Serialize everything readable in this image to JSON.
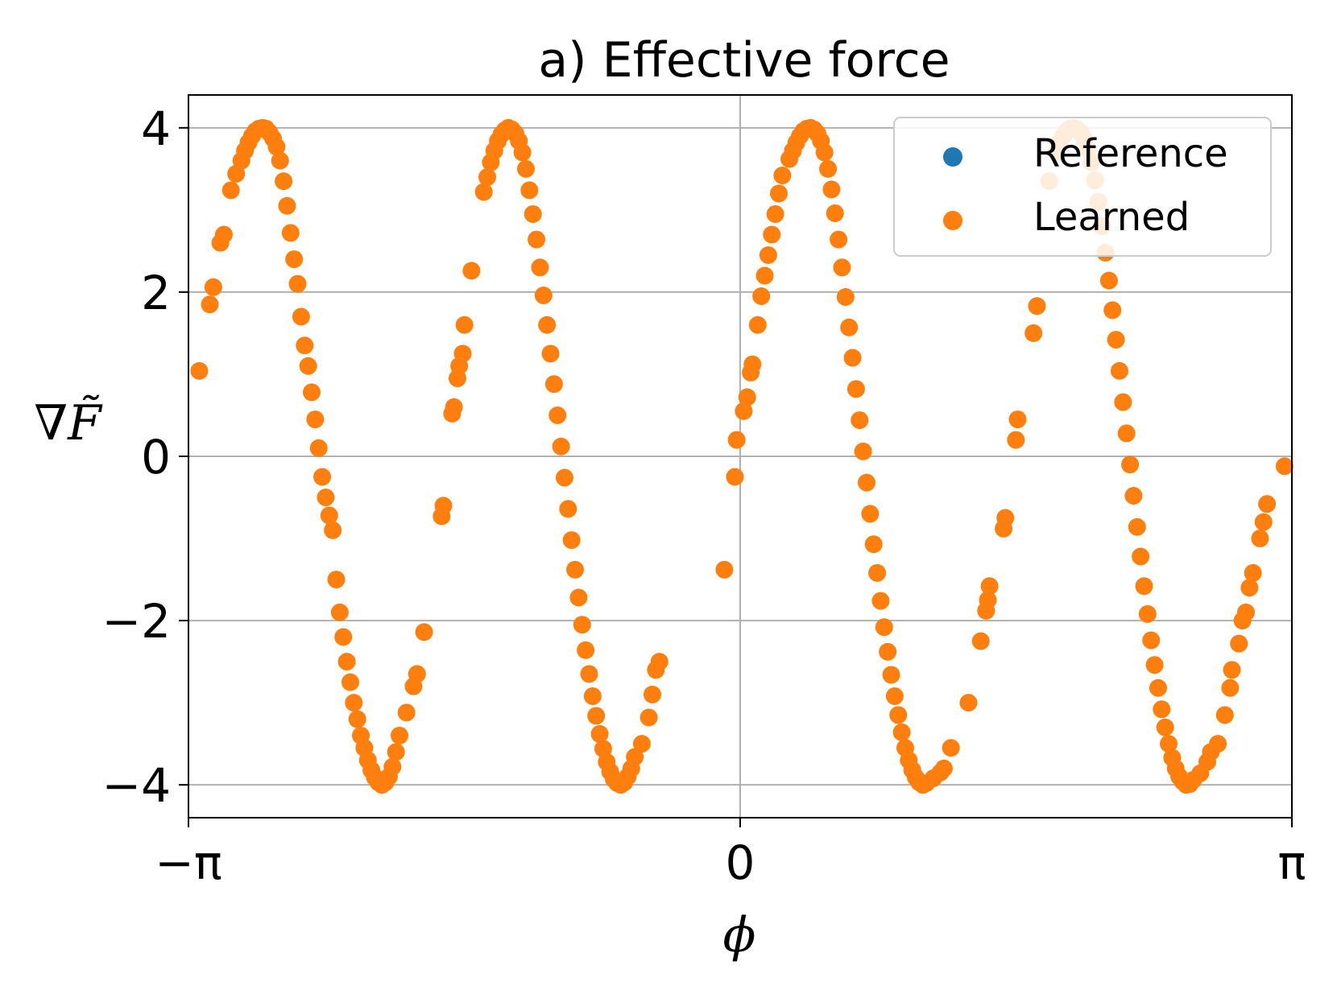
{
  "chart_data": {
    "type": "scatter",
    "title": "a) Effective force",
    "xlabel": "ϕ",
    "ylabel": "∇F̃",
    "xlim": [
      -3.14159,
      3.14159
    ],
    "ylim": [
      -4.4,
      4.4
    ],
    "xticks": [
      {
        "value": -3.14159,
        "label": "−π"
      },
      {
        "value": 0,
        "label": "0"
      },
      {
        "value": 3.14159,
        "label": "π"
      }
    ],
    "yticks": [
      {
        "value": 4,
        "label": "4"
      },
      {
        "value": 2,
        "label": "2"
      },
      {
        "value": 0,
        "label": "0"
      },
      {
        "value": -2,
        "label": "−2"
      },
      {
        "value": -4,
        "label": "−4"
      }
    ],
    "grid": true,
    "legend_position": "top-right",
    "series": [
      {
        "name": "Reference",
        "color": "#1f77b4",
        "points": []
      },
      {
        "name": "Learned",
        "color": "#ff7f0e",
        "points": [
          [
            -3.08,
            1.04
          ],
          [
            -3.02,
            1.85
          ],
          [
            -3.0,
            2.06
          ],
          [
            -2.96,
            2.6
          ],
          [
            -2.94,
            2.7
          ],
          [
            -2.9,
            3.24
          ],
          [
            -2.87,
            3.44
          ],
          [
            -2.84,
            3.6
          ],
          [
            -2.82,
            3.72
          ],
          [
            -2.8,
            3.82
          ],
          [
            -2.78,
            3.9
          ],
          [
            -2.76,
            3.96
          ],
          [
            -2.74,
            3.99
          ],
          [
            -2.72,
            4.0
          ],
          [
            -2.7,
            3.99
          ],
          [
            -2.68,
            3.94
          ],
          [
            -2.66,
            3.87
          ],
          [
            -2.64,
            3.77
          ],
          [
            -2.62,
            3.6
          ],
          [
            -2.6,
            3.35
          ],
          [
            -2.58,
            3.05
          ],
          [
            -2.56,
            2.72
          ],
          [
            -2.54,
            2.4
          ],
          [
            -2.52,
            2.1
          ],
          [
            -2.5,
            1.7
          ],
          [
            -2.48,
            1.35
          ],
          [
            -2.46,
            1.1
          ],
          [
            -2.44,
            0.78
          ],
          [
            -2.42,
            0.45
          ],
          [
            -2.4,
            0.1
          ],
          [
            -2.38,
            -0.25
          ],
          [
            -2.36,
            -0.5
          ],
          [
            -2.34,
            -0.72
          ],
          [
            -2.32,
            -0.9
          ],
          [
            -2.3,
            -1.5
          ],
          [
            -2.28,
            -1.9
          ],
          [
            -2.26,
            -2.2
          ],
          [
            -2.24,
            -2.5
          ],
          [
            -2.22,
            -2.75
          ],
          [
            -2.2,
            -3.0
          ],
          [
            -2.18,
            -3.2
          ],
          [
            -2.16,
            -3.4
          ],
          [
            -2.14,
            -3.55
          ],
          [
            -2.12,
            -3.7
          ],
          [
            -2.1,
            -3.82
          ],
          [
            -2.08,
            -3.91
          ],
          [
            -2.06,
            -3.97
          ],
          [
            -2.04,
            -4.0
          ],
          [
            -2.02,
            -3.97
          ],
          [
            -2.0,
            -3.9
          ],
          [
            -1.98,
            -3.78
          ],
          [
            -1.96,
            -3.6
          ],
          [
            -1.94,
            -3.4
          ],
          [
            -1.9,
            -3.12
          ],
          [
            -1.86,
            -2.8
          ],
          [
            -1.84,
            -2.65
          ],
          [
            -1.8,
            -2.14
          ],
          [
            -1.7,
            -0.73
          ],
          [
            -1.69,
            -0.6
          ],
          [
            -1.64,
            0.52
          ],
          [
            -1.63,
            0.6
          ],
          [
            -1.61,
            0.95
          ],
          [
            -1.6,
            1.1
          ],
          [
            -1.58,
            1.25
          ],
          [
            -1.57,
            1.6
          ],
          [
            -1.53,
            2.26
          ],
          [
            -1.46,
            3.22
          ],
          [
            -1.44,
            3.4
          ],
          [
            -1.42,
            3.58
          ],
          [
            -1.4,
            3.72
          ],
          [
            -1.38,
            3.84
          ],
          [
            -1.36,
            3.92
          ],
          [
            -1.34,
            3.97
          ],
          [
            -1.32,
            4.0
          ],
          [
            -1.3,
            3.98
          ],
          [
            -1.28,
            3.93
          ],
          [
            -1.26,
            3.84
          ],
          [
            -1.24,
            3.7
          ],
          [
            -1.22,
            3.5
          ],
          [
            -1.2,
            3.24
          ],
          [
            -1.18,
            2.95
          ],
          [
            -1.16,
            2.64
          ],
          [
            -1.14,
            2.3
          ],
          [
            -1.12,
            1.96
          ],
          [
            -1.1,
            1.6
          ],
          [
            -1.08,
            1.25
          ],
          [
            -1.06,
            0.88
          ],
          [
            -1.04,
            0.5
          ],
          [
            -1.02,
            0.12
          ],
          [
            -1.0,
            -0.26
          ],
          [
            -0.98,
            -0.64
          ],
          [
            -0.96,
            -1.02
          ],
          [
            -0.94,
            -1.38
          ],
          [
            -0.92,
            -1.72
          ],
          [
            -0.9,
            -2.05
          ],
          [
            -0.88,
            -2.36
          ],
          [
            -0.86,
            -2.65
          ],
          [
            -0.84,
            -2.92
          ],
          [
            -0.82,
            -3.16
          ],
          [
            -0.8,
            -3.38
          ],
          [
            -0.78,
            -3.56
          ],
          [
            -0.76,
            -3.72
          ],
          [
            -0.74,
            -3.84
          ],
          [
            -0.72,
            -3.93
          ],
          [
            -0.7,
            -3.98
          ],
          [
            -0.68,
            -4.0
          ],
          [
            -0.66,
            -3.97
          ],
          [
            -0.64,
            -3.9
          ],
          [
            -0.62,
            -3.8
          ],
          [
            -0.6,
            -3.66
          ],
          [
            -0.56,
            -3.5
          ],
          [
            -0.52,
            -3.18
          ],
          [
            -0.5,
            -2.9
          ],
          [
            -0.48,
            -2.6
          ],
          [
            -0.46,
            -2.5
          ],
          [
            -0.09,
            -1.38
          ],
          [
            -0.03,
            -0.25
          ],
          [
            -0.02,
            0.2
          ],
          [
            0.02,
            0.55
          ],
          [
            0.04,
            0.72
          ],
          [
            0.06,
            1.02
          ],
          [
            0.07,
            1.12
          ],
          [
            0.1,
            1.6
          ],
          [
            0.12,
            1.95
          ],
          [
            0.14,
            2.2
          ],
          [
            0.16,
            2.45
          ],
          [
            0.18,
            2.7
          ],
          [
            0.2,
            2.95
          ],
          [
            0.22,
            3.2
          ],
          [
            0.24,
            3.42
          ],
          [
            0.28,
            3.62
          ],
          [
            0.3,
            3.72
          ],
          [
            0.32,
            3.82
          ],
          [
            0.34,
            3.9
          ],
          [
            0.36,
            3.96
          ],
          [
            0.38,
            3.99
          ],
          [
            0.4,
            4.0
          ],
          [
            0.42,
            3.98
          ],
          [
            0.44,
            3.93
          ],
          [
            0.46,
            3.84
          ],
          [
            0.48,
            3.7
          ],
          [
            0.5,
            3.5
          ],
          [
            0.52,
            3.25
          ],
          [
            0.54,
            2.96
          ],
          [
            0.56,
            2.64
          ],
          [
            0.58,
            2.3
          ],
          [
            0.6,
            1.94
          ],
          [
            0.62,
            1.57
          ],
          [
            0.64,
            1.2
          ],
          [
            0.66,
            0.82
          ],
          [
            0.68,
            0.44
          ],
          [
            0.7,
            0.06
          ],
          [
            0.72,
            -0.32
          ],
          [
            0.74,
            -0.7
          ],
          [
            0.76,
            -1.07
          ],
          [
            0.78,
            -1.42
          ],
          [
            0.8,
            -1.76
          ],
          [
            0.82,
            -2.08
          ],
          [
            0.84,
            -2.38
          ],
          [
            0.86,
            -2.66
          ],
          [
            0.88,
            -2.92
          ],
          [
            0.9,
            -3.15
          ],
          [
            0.92,
            -3.36
          ],
          [
            0.94,
            -3.55
          ],
          [
            0.96,
            -3.7
          ],
          [
            0.98,
            -3.82
          ],
          [
            1.0,
            -3.91
          ],
          [
            1.02,
            -3.97
          ],
          [
            1.04,
            -4.0
          ],
          [
            1.06,
            -3.98
          ],
          [
            1.1,
            -3.92
          ],
          [
            1.14,
            -3.85
          ],
          [
            1.16,
            -3.8
          ],
          [
            1.2,
            -3.55
          ],
          [
            1.3,
            -3.0
          ],
          [
            1.37,
            -2.25
          ],
          [
            1.4,
            -1.88
          ],
          [
            1.41,
            -1.75
          ],
          [
            1.42,
            -1.58
          ],
          [
            1.5,
            -0.88
          ],
          [
            1.51,
            -0.75
          ],
          [
            1.57,
            0.2
          ],
          [
            1.58,
            0.45
          ],
          [
            1.67,
            1.5
          ],
          [
            1.69,
            1.83
          ],
          [
            1.76,
            3.35
          ],
          [
            1.8,
            3.7
          ],
          [
            1.82,
            3.82
          ],
          [
            1.84,
            3.9
          ],
          [
            1.86,
            3.96
          ],
          [
            1.88,
            3.99
          ],
          [
            1.9,
            4.0
          ],
          [
            1.92,
            3.98
          ],
          [
            1.94,
            3.94
          ],
          [
            1.96,
            3.86
          ],
          [
            1.98,
            3.74
          ],
          [
            2.0,
            3.58
          ],
          [
            2.02,
            3.36
          ],
          [
            2.04,
            3.1
          ],
          [
            2.06,
            2.8
          ],
          [
            2.08,
            2.48
          ],
          [
            2.1,
            2.14
          ],
          [
            2.12,
            1.78
          ],
          [
            2.14,
            1.42
          ],
          [
            2.16,
            1.04
          ],
          [
            2.18,
            0.66
          ],
          [
            2.2,
            0.28
          ],
          [
            2.22,
            -0.1
          ],
          [
            2.24,
            -0.48
          ],
          [
            2.26,
            -0.86
          ],
          [
            2.28,
            -1.22
          ],
          [
            2.3,
            -1.58
          ],
          [
            2.32,
            -1.92
          ],
          [
            2.34,
            -2.24
          ],
          [
            2.36,
            -2.54
          ],
          [
            2.38,
            -2.82
          ],
          [
            2.4,
            -3.08
          ],
          [
            2.42,
            -3.3
          ],
          [
            2.44,
            -3.5
          ],
          [
            2.46,
            -3.67
          ],
          [
            2.48,
            -3.8
          ],
          [
            2.5,
            -3.9
          ],
          [
            2.52,
            -3.96
          ],
          [
            2.54,
            -4.0
          ],
          [
            2.56,
            -3.99
          ],
          [
            2.58,
            -3.94
          ],
          [
            2.62,
            -3.86
          ],
          [
            2.66,
            -3.72
          ],
          [
            2.68,
            -3.6
          ],
          [
            2.72,
            -3.5
          ],
          [
            2.76,
            -3.15
          ],
          [
            2.79,
            -2.82
          ],
          [
            2.8,
            -2.6
          ],
          [
            2.84,
            -2.28
          ],
          [
            2.86,
            -2.0
          ],
          [
            2.88,
            -1.9
          ],
          [
            2.9,
            -1.6
          ],
          [
            2.92,
            -1.42
          ],
          [
            2.96,
            -1.0
          ],
          [
            2.98,
            -0.8
          ],
          [
            3.0,
            -0.58
          ],
          [
            3.1,
            -0.12
          ]
        ]
      }
    ]
  }
}
